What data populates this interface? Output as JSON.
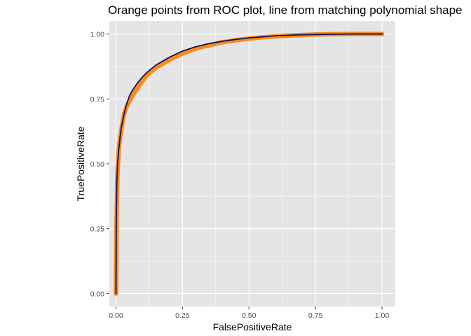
{
  "chart_data": {
    "type": "line",
    "title": "Orange points from ROC plot, line from matching polynomial shape",
    "xlabel": "FalsePositiveRate",
    "ylabel": "TruePositiveRate",
    "xlim": [
      -0.025,
      1.05
    ],
    "ylim": [
      -0.05,
      1.05
    ],
    "x_ticks": [
      0.0,
      0.25,
      0.5,
      0.75,
      1.0
    ],
    "x_tick_labels": [
      "0.00",
      "0.25",
      "0.50",
      "0.75",
      "1.00"
    ],
    "y_ticks": [
      0.0,
      0.25,
      0.5,
      0.75,
      1.0
    ],
    "y_tick_labels": [
      "0.00",
      "0.25",
      "0.50",
      "0.75",
      "1.00"
    ],
    "grid": true,
    "legend": "none",
    "colors": {
      "panel_background": "#e5e5e5",
      "grid_line": "#ffffff",
      "points": "#f98b1b",
      "line": "#14125a"
    },
    "series": [
      {
        "kind": "points",
        "x": [
          0.0,
          0.002,
          0.005,
          0.01,
          0.015,
          0.02,
          0.03,
          0.04,
          0.05,
          0.06,
          0.08,
          0.1,
          0.12,
          0.15,
          0.2,
          0.25,
          0.3,
          0.35,
          0.4,
          0.45,
          0.5,
          0.55,
          0.6,
          0.65,
          0.7,
          0.75,
          0.8,
          0.85,
          0.9,
          0.95,
          1.0
        ],
        "y": [
          0.0,
          0.27,
          0.45,
          0.55,
          0.6,
          0.63,
          0.69,
          0.72,
          0.74,
          0.76,
          0.79,
          0.82,
          0.845,
          0.87,
          0.9,
          0.925,
          0.944,
          0.957,
          0.968,
          0.976,
          0.982,
          0.987,
          0.991,
          0.994,
          0.996,
          0.998,
          0.999,
          0.9995,
          1.0,
          1.0,
          1.0
        ]
      },
      {
        "kind": "line",
        "x": [
          0.0,
          0.001,
          0.003,
          0.006,
          0.01,
          0.015,
          0.02,
          0.03,
          0.04,
          0.05,
          0.06,
          0.08,
          0.1,
          0.12,
          0.15,
          0.2,
          0.25,
          0.3,
          0.35,
          0.4,
          0.45,
          0.5,
          0.55,
          0.6,
          0.65,
          0.7,
          0.75,
          0.8,
          0.85,
          0.9,
          0.95,
          1.0
        ],
        "y": [
          0.0,
          0.28,
          0.42,
          0.5,
          0.55,
          0.6,
          0.64,
          0.69,
          0.73,
          0.76,
          0.78,
          0.81,
          0.835,
          0.855,
          0.88,
          0.91,
          0.934,
          0.951,
          0.963,
          0.972,
          0.979,
          0.985,
          0.989,
          0.993,
          0.995,
          0.997,
          0.998,
          0.999,
          0.9995,
          1.0,
          1.0,
          1.0
        ]
      }
    ]
  }
}
